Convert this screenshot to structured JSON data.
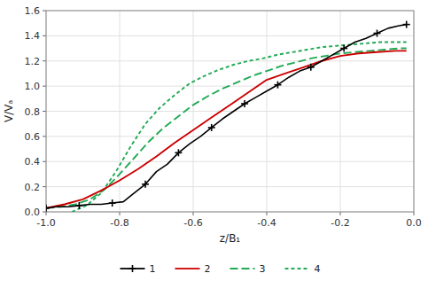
{
  "chart_data": {
    "type": "line",
    "xlabel": "z/B₁",
    "ylabel": "V/Vₐ",
    "xlim": [
      -1.0,
      0.0
    ],
    "ylim": [
      0.0,
      1.6
    ],
    "xticks": [
      {
        "value": -1.0,
        "label": "-1.0"
      },
      -0.8,
      -0.6,
      -0.4,
      -0.2,
      {
        "value": 0.0,
        "label": "0.0"
      }
    ],
    "yticks": [
      {
        "value": 0.0,
        "label": "0.0"
      },
      0.2,
      0.4,
      0.6,
      0.8,
      {
        "value": 1.0,
        "label": "1.0"
      },
      1.2,
      1.4,
      1.6
    ],
    "grid": true,
    "legend": "bottom",
    "series": [
      {
        "name": "1",
        "color": "#000000",
        "line_style": "solid",
        "marker": "plus",
        "x": [
          -1.0,
          -0.97,
          -0.94,
          -0.91,
          -0.88,
          -0.85,
          -0.82,
          -0.79,
          -0.76,
          -0.73,
          -0.7,
          -0.67,
          -0.64,
          -0.61,
          -0.58,
          -0.55,
          -0.52,
          -0.49,
          -0.46,
          -0.43,
          -0.4,
          -0.37,
          -0.34,
          -0.31,
          -0.28,
          -0.25,
          -0.22,
          -0.19,
          -0.16,
          -0.13,
          -0.1,
          -0.07,
          -0.04,
          -0.02
        ],
        "values": [
          0.03,
          0.04,
          0.04,
          0.05,
          0.06,
          0.06,
          0.07,
          0.08,
          0.15,
          0.22,
          0.32,
          0.38,
          0.47,
          0.54,
          0.6,
          0.67,
          0.74,
          0.8,
          0.86,
          0.91,
          0.96,
          1.01,
          1.07,
          1.12,
          1.15,
          1.2,
          1.25,
          1.3,
          1.35,
          1.38,
          1.42,
          1.46,
          1.48,
          1.49
        ]
      },
      {
        "name": "2",
        "color": "#cc0000",
        "line_style": "solid",
        "x": [
          -1.0,
          -0.95,
          -0.9,
          -0.85,
          -0.8,
          -0.75,
          -0.7,
          -0.65,
          -0.6,
          -0.55,
          -0.5,
          -0.45,
          -0.4,
          -0.35,
          -0.3,
          -0.25,
          -0.2,
          -0.15,
          -0.1,
          -0.05,
          -0.02
        ],
        "values": [
          0.03,
          0.06,
          0.1,
          0.17,
          0.25,
          0.34,
          0.44,
          0.55,
          0.65,
          0.75,
          0.85,
          0.95,
          1.05,
          1.1,
          1.15,
          1.2,
          1.24,
          1.26,
          1.27,
          1.28,
          1.28
        ]
      },
      {
        "name": "3",
        "color": "#22aa55",
        "line_style": "long-dash",
        "x": [
          -1.0,
          -0.96,
          -0.92,
          -0.88,
          -0.84,
          -0.8,
          -0.76,
          -0.72,
          -0.68,
          -0.64,
          -0.6,
          -0.56,
          -0.52,
          -0.48,
          -0.44,
          -0.4,
          -0.36,
          -0.32,
          -0.28,
          -0.24,
          -0.2,
          -0.16,
          -0.12,
          -0.08,
          -0.04,
          -0.02
        ],
        "values": [
          0.03,
          0.04,
          0.06,
          0.1,
          0.18,
          0.3,
          0.43,
          0.56,
          0.67,
          0.76,
          0.85,
          0.92,
          0.98,
          1.03,
          1.08,
          1.12,
          1.16,
          1.19,
          1.22,
          1.24,
          1.26,
          1.27,
          1.28,
          1.29,
          1.3,
          1.3
        ]
      },
      {
        "name": "4",
        "color": "#22aa55",
        "line_style": "short-dash",
        "x": [
          -0.93,
          -0.89,
          -0.85,
          -0.81,
          -0.77,
          -0.73,
          -0.69,
          -0.65,
          -0.61,
          -0.57,
          -0.53,
          -0.49,
          -0.45,
          -0.41,
          -0.37,
          -0.33,
          -0.29,
          -0.25,
          -0.21,
          -0.17,
          -0.13,
          -0.09,
          -0.05,
          -0.02
        ],
        "values": [
          0.0,
          0.05,
          0.15,
          0.32,
          0.52,
          0.7,
          0.83,
          0.93,
          1.02,
          1.08,
          1.13,
          1.17,
          1.2,
          1.22,
          1.25,
          1.27,
          1.29,
          1.31,
          1.32,
          1.33,
          1.34,
          1.35,
          1.35,
          1.35
        ]
      }
    ]
  }
}
